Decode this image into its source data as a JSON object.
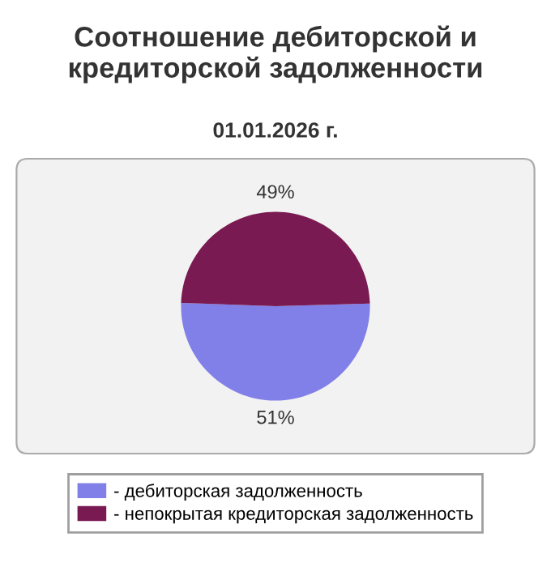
{
  "chart_data": {
    "type": "pie",
    "title": "Соотношение дебиторской и\nкредиторской задолженности",
    "subtitle": "01.01.2026 г.",
    "categories": [
      "- дебиторская задолженность",
      "- непокрытая кредиторская задолженность"
    ],
    "values": [
      51,
      49
    ],
    "colors": [
      "#8080e8",
      "#7a1a52"
    ],
    "value_labels": [
      "51%",
      "49%"
    ],
    "legend": "bottom"
  }
}
